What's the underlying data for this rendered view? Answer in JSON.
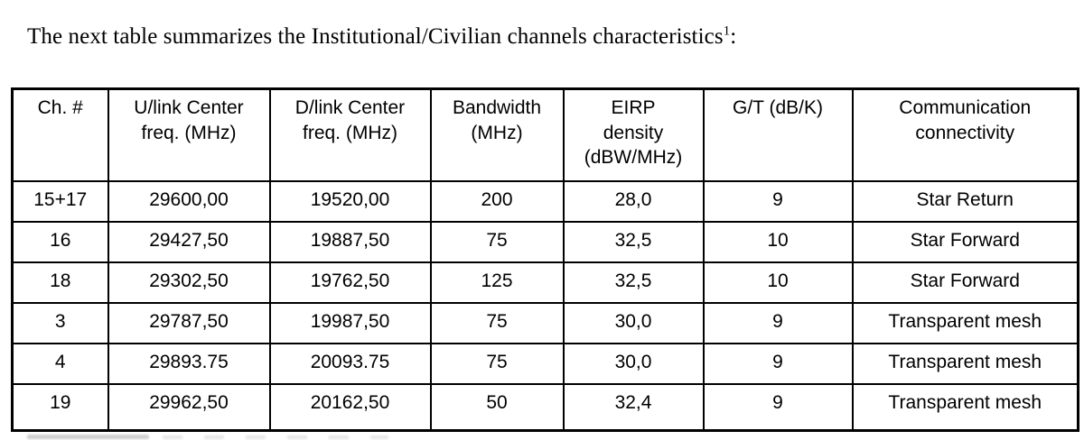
{
  "colors": {
    "background": "#ffffff",
    "text": "#000000",
    "table_border": "#000000"
  },
  "title": {
    "text": "The next table summarizes the Institutional/Civilian channels characteristics",
    "superscript": "1",
    "suffix": ":"
  },
  "table": {
    "columns": [
      {
        "key": "ch",
        "lines": [
          "Ch. #"
        ]
      },
      {
        "key": "ulink",
        "lines": [
          "U/link Center",
          "freq. (MHz)"
        ]
      },
      {
        "key": "dlink",
        "lines": [
          "D/link Center",
          "freq. (MHz)"
        ]
      },
      {
        "key": "bw",
        "lines": [
          "Bandwidth",
          "(MHz)"
        ]
      },
      {
        "key": "eirp",
        "lines": [
          "EIRP",
          "density",
          "(dBW/MHz)"
        ]
      },
      {
        "key": "gt",
        "lines": [
          "G/T (dB/K)"
        ]
      },
      {
        "key": "conn",
        "lines": [
          "Communication",
          "connectivity"
        ]
      }
    ],
    "rows": [
      {
        "ch": "15+17",
        "ulink": "29600,00",
        "dlink": "19520,00",
        "bw": "200",
        "eirp": "28,0",
        "gt": "9",
        "conn": "Star Return"
      },
      {
        "ch": "16",
        "ulink": "29427,50",
        "dlink": "19887,50",
        "bw": "75",
        "eirp": "32,5",
        "gt": "10",
        "conn": "Star Forward"
      },
      {
        "ch": "18",
        "ulink": "29302,50",
        "dlink": "19762,50",
        "bw": "125",
        "eirp": "32,5",
        "gt": "10",
        "conn": "Star Forward"
      },
      {
        "ch": "3",
        "ulink": "29787,50",
        "dlink": "19987,50",
        "bw": "75",
        "eirp": "30,0",
        "gt": "9",
        "conn": "Transparent mesh"
      },
      {
        "ch": "4",
        "ulink": "29893.75",
        "dlink": "20093.75",
        "bw": "75",
        "eirp": "30,0",
        "gt": "9",
        "conn": "Transparent mesh"
      },
      {
        "ch": "19",
        "ulink": "29962,50",
        "dlink": "20162,50",
        "bw": "50",
        "eirp": "32,4",
        "gt": "9",
        "conn": "Transparent mesh"
      }
    ]
  }
}
